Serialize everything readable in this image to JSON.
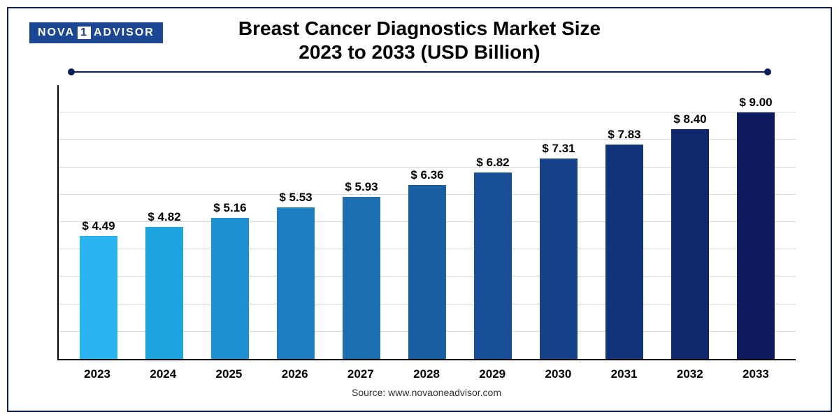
{
  "logo": {
    "prefix": "NOVA",
    "digit": "1",
    "suffix": "ADVISOR"
  },
  "title": {
    "line1": "Breast Cancer Diagnostics Market Size",
    "line2": "2023 to 2033 (USD Billion)",
    "fontsize": 28,
    "color": "#000000"
  },
  "rule_color": "#0a1e5a",
  "frame_border_color": "#0a1e5a",
  "chart": {
    "type": "bar",
    "ymax": 10.0,
    "grid_count": 9,
    "grid_color": "#d9d9d9",
    "axis_color": "#000000",
    "bar_width_pct": 58,
    "label_fontsize": 17,
    "label_fontweight": 700,
    "xtick_fontsize": 17,
    "xtick_fontweight": 700,
    "background_color": "#ffffff",
    "categories": [
      "2023",
      "2024",
      "2025",
      "2026",
      "2027",
      "2028",
      "2029",
      "2030",
      "2031",
      "2032",
      "2033"
    ],
    "values": [
      4.49,
      4.82,
      5.16,
      5.53,
      5.93,
      6.36,
      6.82,
      7.31,
      7.83,
      8.4,
      9.0
    ],
    "value_labels": [
      "$ 4.49",
      "$ 4.82",
      "$ 5.16",
      "$ 5.53",
      "$ 5.93",
      "$ 6.36",
      "$ 6.82",
      "$ 7.31",
      "$ 7.83",
      "$ 8.40",
      "$ 9.00"
    ],
    "bar_colors": [
      "#29b6f0",
      "#1fa3de",
      "#1e90cf",
      "#1b7ec0",
      "#1a6fb2",
      "#195fa4",
      "#184f96",
      "#174188",
      "#14347a",
      "#11276c",
      "#0d1b5e"
    ]
  },
  "source": "Source: www.novaoneadvisor.com"
}
